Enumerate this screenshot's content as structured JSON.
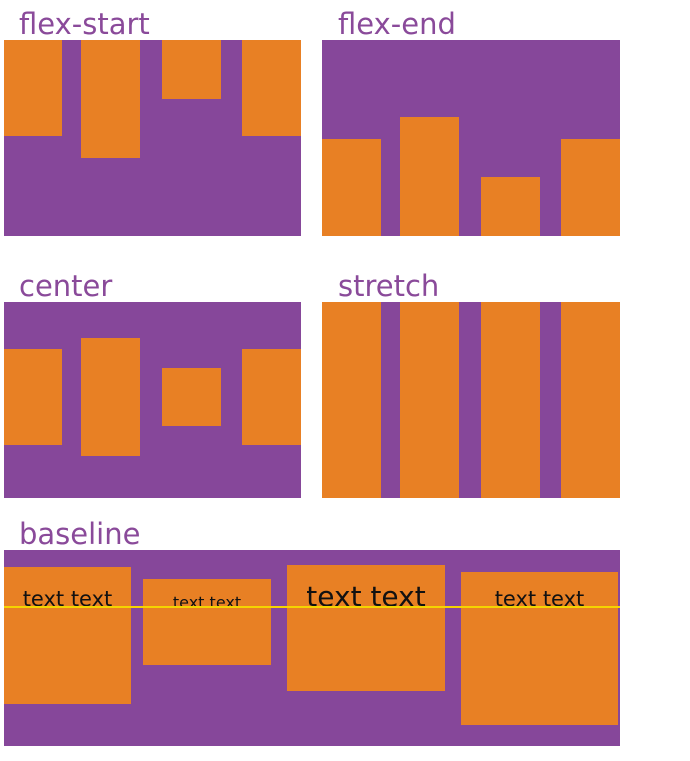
{
  "demos": {
    "flex_start": {
      "label": "flex-start"
    },
    "flex_end": {
      "label": "flex-end"
    },
    "center": {
      "label": "center"
    },
    "stretch": {
      "label": "stretch"
    },
    "baseline": {
      "label": "baseline",
      "items": [
        "text text",
        "text text",
        "text text",
        "text text"
      ]
    }
  },
  "colors": {
    "container": "#86479a",
    "item": "#e88024",
    "label": "#8a4a9a",
    "baseline_guide": "#f5d400"
  }
}
